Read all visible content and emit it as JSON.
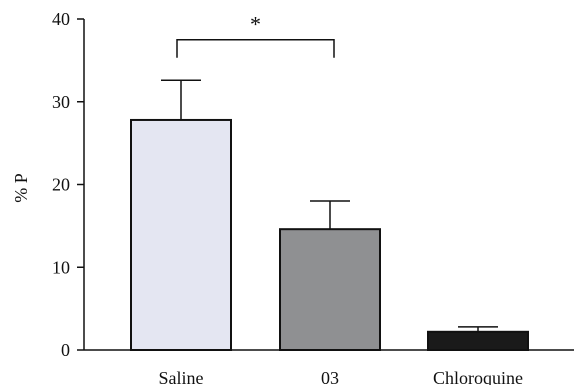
{
  "chart_data": {
    "type": "bar",
    "title": "",
    "xlabel": "",
    "ylabel": "% P",
    "categories": [
      "Saline",
      "03",
      "Chloroquine"
    ],
    "values": [
      27.8,
      14.6,
      2.2
    ],
    "errors": [
      4.8,
      3.4,
      0.6
    ],
    "colors": [
      "#e4e6f2",
      "#8f9092",
      "#1a1a1a"
    ],
    "ylim": [
      0,
      40
    ],
    "yticks": [
      0,
      10,
      20,
      30,
      40
    ],
    "grid": false,
    "significance": {
      "from": 0,
      "to": 1,
      "symbol": "*",
      "y": 37.5
    }
  }
}
